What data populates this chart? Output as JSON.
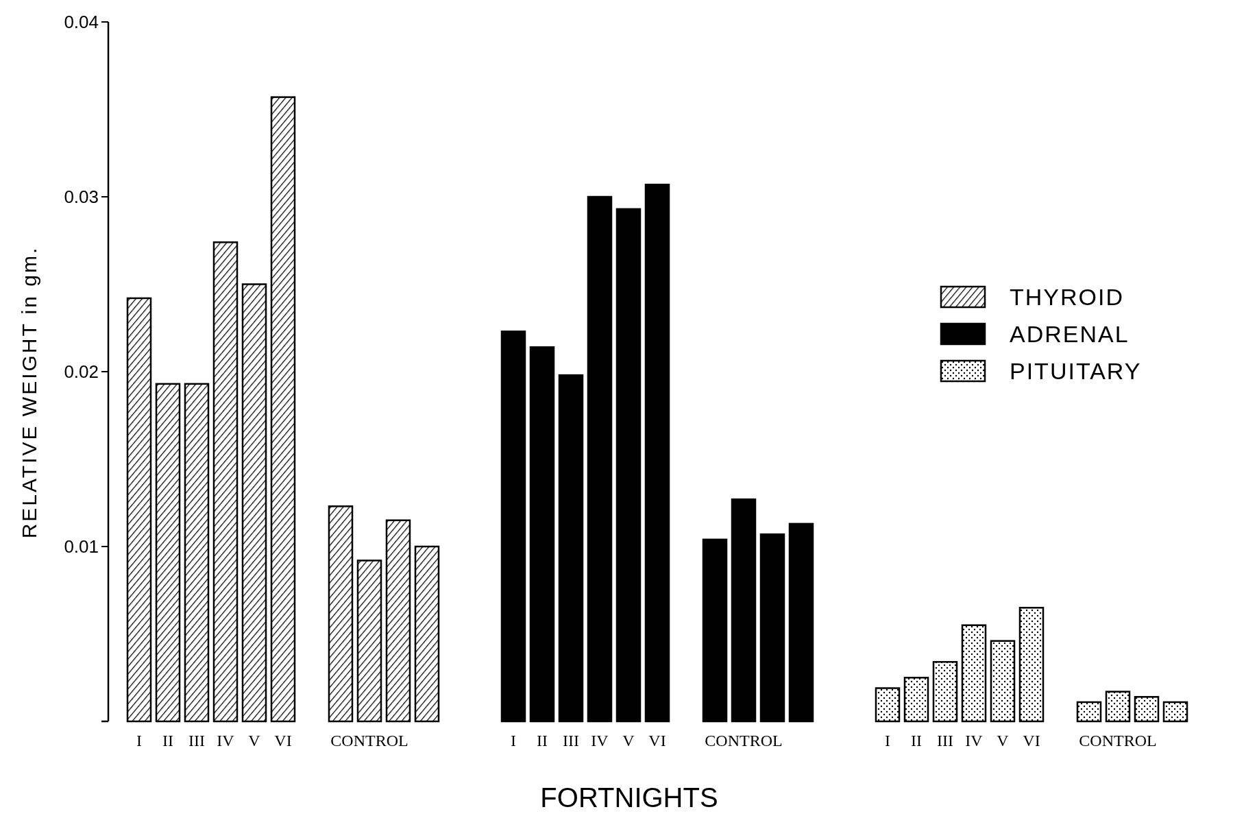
{
  "chart_data": {
    "type": "bar",
    "xlabel": "FORTNIGHTS",
    "ylabel": "RELATIVE WEIGHT in gm.",
    "categories": [
      "I",
      "II",
      "III",
      "IV",
      "V",
      "VI",
      null,
      null,
      "CONTROL",
      null,
      null,
      null,
      null,
      "I",
      "II",
      "III",
      "IV",
      "V",
      "VI",
      null,
      null,
      "CONTROL",
      null,
      null,
      null,
      null,
      "I",
      "II",
      "III",
      "IV",
      "V",
      "VI",
      null,
      null,
      "CONTROL",
      null,
      null
    ],
    "series": [
      {
        "name": "THYROID",
        "color": "#000000",
        "values": [
          0.0242,
          0.0193,
          0.0193,
          0.0274,
          0.025,
          0.0357,
          null,
          0.0123,
          0.0092,
          0.0115,
          0.01,
          null,
          null,
          null,
          null,
          null,
          null,
          null,
          null,
          null,
          null,
          null,
          null,
          null,
          null,
          null,
          null,
          null,
          null,
          null,
          null,
          null,
          null,
          null,
          null,
          null,
          null
        ]
      },
      {
        "name": "ADRENAL",
        "color": "#000000",
        "values": [
          null,
          null,
          null,
          null,
          null,
          null,
          null,
          null,
          null,
          null,
          null,
          null,
          null,
          0.0223,
          0.0214,
          0.0198,
          0.03,
          0.0293,
          0.0307,
          null,
          0.0104,
          0.0127,
          0.0107,
          0.0113,
          null,
          null,
          null,
          null,
          null,
          null,
          null,
          null,
          null,
          null,
          null,
          null,
          null
        ]
      },
      {
        "name": "PITUITARY",
        "color": "#000000",
        "values": [
          null,
          null,
          null,
          null,
          null,
          null,
          null,
          null,
          null,
          null,
          null,
          null,
          null,
          null,
          null,
          null,
          null,
          null,
          null,
          null,
          null,
          null,
          null,
          null,
          null,
          null,
          0.0019,
          0.0025,
          0.0034,
          0.0055,
          0.0046,
          0.0065,
          null,
          0.0011,
          0.0017,
          0.0014,
          0.0011
        ]
      }
    ],
    "ylim": [
      0,
      0.04
    ],
    "yticks": [
      0.01,
      0.02,
      0.03,
      0.04
    ],
    "grid": false,
    "legend": "right"
  }
}
